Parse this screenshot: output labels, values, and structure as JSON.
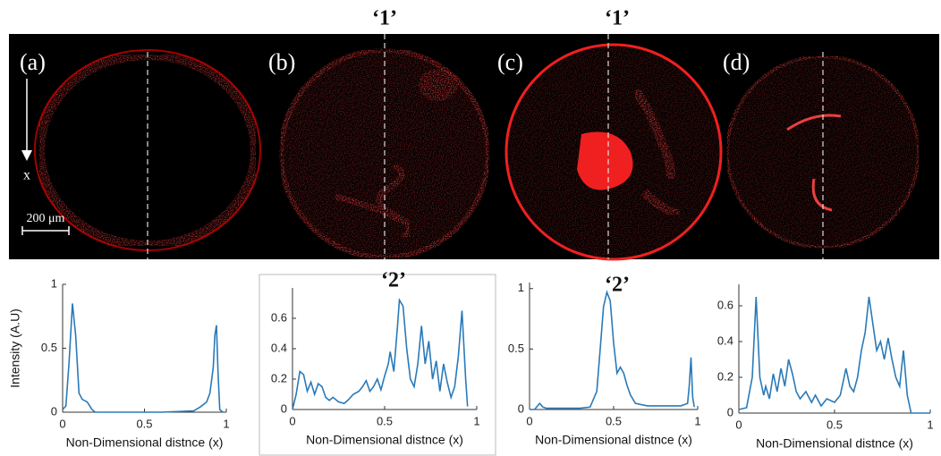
{
  "figure": {
    "panel_labels": [
      "(a)",
      "(b)",
      "(c)",
      "(d)"
    ],
    "markers": [
      "‘1’",
      "‘1’",
      "‘2’",
      "‘2’"
    ],
    "axis_arrow_label": "x",
    "scale_bar": "200 μm"
  },
  "chart_data": [
    {
      "type": "line",
      "ylabel": "Intensity (A.U)",
      "xlabel": "Non-Dimensional distnce (x)",
      "color": "#2a7ab8",
      "x": [
        0,
        0.02,
        0.04,
        0.06,
        0.08,
        0.1,
        0.12,
        0.15,
        0.18,
        0.2,
        0.4,
        0.6,
        0.8,
        0.84,
        0.88,
        0.9,
        0.92,
        0.93,
        0.94,
        0.95,
        0.96,
        0.98
      ],
      "values": [
        0.02,
        0.05,
        0.4,
        0.85,
        0.6,
        0.15,
        0.1,
        0.08,
        0.02,
        0,
        0,
        0,
        0.01,
        0.04,
        0.08,
        0.15,
        0.35,
        0.6,
        0.68,
        0.3,
        0.02,
        0
      ],
      "xlim": [
        0,
        1
      ],
      "ylim": [
        0,
        1
      ],
      "xticks": [
        0,
        0.5,
        1
      ],
      "yticks": [
        0,
        0.5,
        1
      ]
    },
    {
      "type": "line",
      "xlabel": "Non-Dimensional distnce (x)",
      "color": "#2a7ab8",
      "x": [
        0,
        0.02,
        0.04,
        0.06,
        0.08,
        0.1,
        0.12,
        0.14,
        0.16,
        0.18,
        0.2,
        0.22,
        0.25,
        0.28,
        0.3,
        0.33,
        0.36,
        0.38,
        0.4,
        0.42,
        0.44,
        0.46,
        0.48,
        0.5,
        0.52,
        0.53,
        0.55,
        0.57,
        0.58,
        0.6,
        0.62,
        0.64,
        0.66,
        0.68,
        0.7,
        0.72,
        0.74,
        0.76,
        0.78,
        0.8,
        0.82,
        0.84,
        0.86,
        0.88,
        0.9,
        0.92,
        0.94,
        0.95
      ],
      "values": [
        0,
        0.1,
        0.25,
        0.23,
        0.12,
        0.18,
        0.1,
        0.17,
        0.15,
        0.08,
        0.06,
        0.08,
        0.05,
        0.04,
        0.06,
        0.1,
        0.12,
        0.15,
        0.19,
        0.12,
        0.15,
        0.2,
        0.13,
        0.22,
        0.3,
        0.38,
        0.25,
        0.55,
        0.72,
        0.68,
        0.4,
        0.2,
        0.15,
        0.3,
        0.55,
        0.3,
        0.45,
        0.2,
        0.32,
        0.12,
        0.3,
        0.18,
        0.08,
        0.15,
        0.35,
        0.65,
        0.2,
        0.02
      ],
      "xlim": [
        0,
        1
      ],
      "ylim": [
        0,
        0.8
      ],
      "xticks": [
        0,
        0.5,
        1
      ],
      "yticks": [
        0,
        0.2,
        0.4,
        0.6
      ]
    },
    {
      "type": "line",
      "xlabel": "Non-Dimensional distnce (x)",
      "color": "#2a7ab8",
      "x": [
        0,
        0.03,
        0.06,
        0.08,
        0.1,
        0.2,
        0.3,
        0.36,
        0.4,
        0.42,
        0.44,
        0.46,
        0.48,
        0.5,
        0.52,
        0.54,
        0.56,
        0.58,
        0.6,
        0.63,
        0.7,
        0.8,
        0.9,
        0.94,
        0.95,
        0.96,
        0.97,
        0.98
      ],
      "values": [
        0,
        0,
        0.05,
        0.02,
        0.01,
        0.01,
        0.01,
        0.02,
        0.15,
        0.5,
        0.85,
        0.97,
        0.9,
        0.55,
        0.3,
        0.35,
        0.3,
        0.2,
        0.12,
        0.05,
        0.03,
        0.03,
        0.03,
        0.05,
        0.2,
        0.43,
        0.1,
        0.02
      ],
      "xlim": [
        0,
        1
      ],
      "ylim": [
        0,
        1.05
      ],
      "xticks": [
        0,
        0.5,
        1
      ],
      "yticks": [
        0,
        0.5,
        1
      ]
    },
    {
      "type": "line",
      "xlabel": "Non-Dimensional distnce (x)",
      "color": "#2a7ab8",
      "x": [
        0,
        0.04,
        0.07,
        0.09,
        0.11,
        0.13,
        0.14,
        0.16,
        0.18,
        0.2,
        0.22,
        0.24,
        0.26,
        0.28,
        0.3,
        0.32,
        0.35,
        0.38,
        0.4,
        0.43,
        0.46,
        0.5,
        0.53,
        0.56,
        0.58,
        0.6,
        0.62,
        0.64,
        0.66,
        0.68,
        0.7,
        0.72,
        0.74,
        0.76,
        0.78,
        0.8,
        0.82,
        0.84,
        0.86,
        0.88,
        0.9,
        0.95,
        1
      ],
      "values": [
        0.02,
        0.03,
        0.2,
        0.65,
        0.2,
        0.1,
        0.15,
        0.08,
        0.22,
        0.12,
        0.25,
        0.15,
        0.3,
        0.22,
        0.12,
        0.08,
        0.12,
        0.06,
        0.1,
        0.04,
        0.08,
        0.06,
        0.1,
        0.25,
        0.15,
        0.12,
        0.2,
        0.35,
        0.45,
        0.65,
        0.5,
        0.35,
        0.4,
        0.3,
        0.42,
        0.3,
        0.2,
        0.15,
        0.35,
        0.1,
        0,
        0,
        0
      ],
      "xlim": [
        0,
        1
      ],
      "ylim": [
        0,
        0.72
      ],
      "xticks": [
        0,
        0.5,
        1
      ],
      "yticks": [
        0,
        0.2,
        0.4,
        0.6
      ]
    }
  ]
}
